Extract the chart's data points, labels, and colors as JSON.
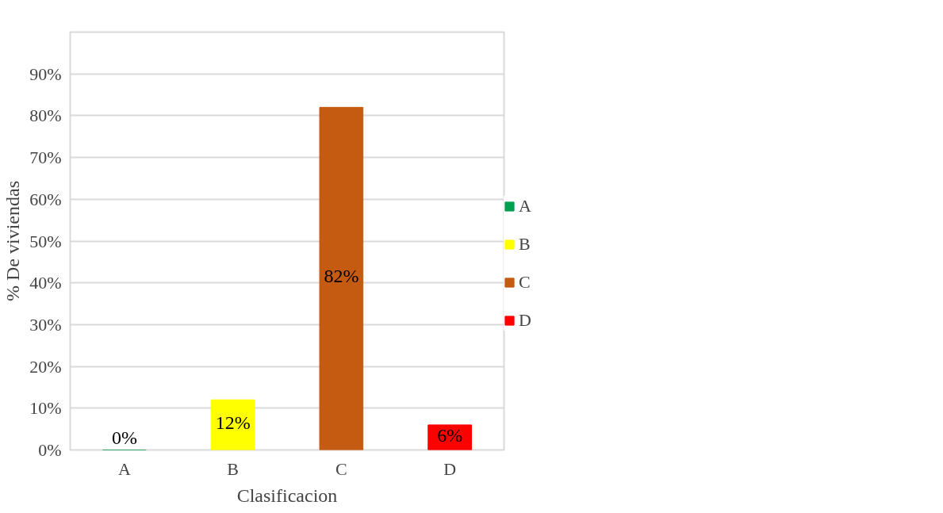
{
  "chart_data": {
    "type": "bar",
    "xlabel": "Clasificacion",
    "ylabel": "% De viviendas",
    "categories": [
      "A",
      "B",
      "C",
      "D"
    ],
    "series": [
      {
        "name": "A",
        "color": "#00a050",
        "values": [
          0,
          null,
          null,
          null
        ]
      },
      {
        "name": "B",
        "color": "#ffff00",
        "values": [
          null,
          12,
          null,
          null
        ]
      },
      {
        "name": "C",
        "color": "#c55a11",
        "values": [
          null,
          null,
          82,
          null
        ]
      },
      {
        "name": "D",
        "color": "#ff0000",
        "values": [
          null,
          null,
          null,
          6
        ]
      }
    ],
    "value_labels": [
      "0%",
      "12%",
      "82%",
      "6%"
    ],
    "ylim": [
      0,
      100
    ],
    "yticks": [
      {
        "value": 0,
        "label": "0%"
      },
      {
        "value": 10,
        "label": "10%"
      },
      {
        "value": 20,
        "label": "20%"
      },
      {
        "value": 30,
        "label": "30%"
      },
      {
        "value": 40,
        "label": "40%"
      },
      {
        "value": 50,
        "label": "50%"
      },
      {
        "value": 60,
        "label": "60%"
      },
      {
        "value": 70,
        "label": "70%"
      },
      {
        "value": 80,
        "label": "80%"
      },
      {
        "value": 90,
        "label": "90%"
      },
      {
        "value": 100,
        "label": null
      }
    ],
    "grid": "y",
    "legend": "right"
  }
}
